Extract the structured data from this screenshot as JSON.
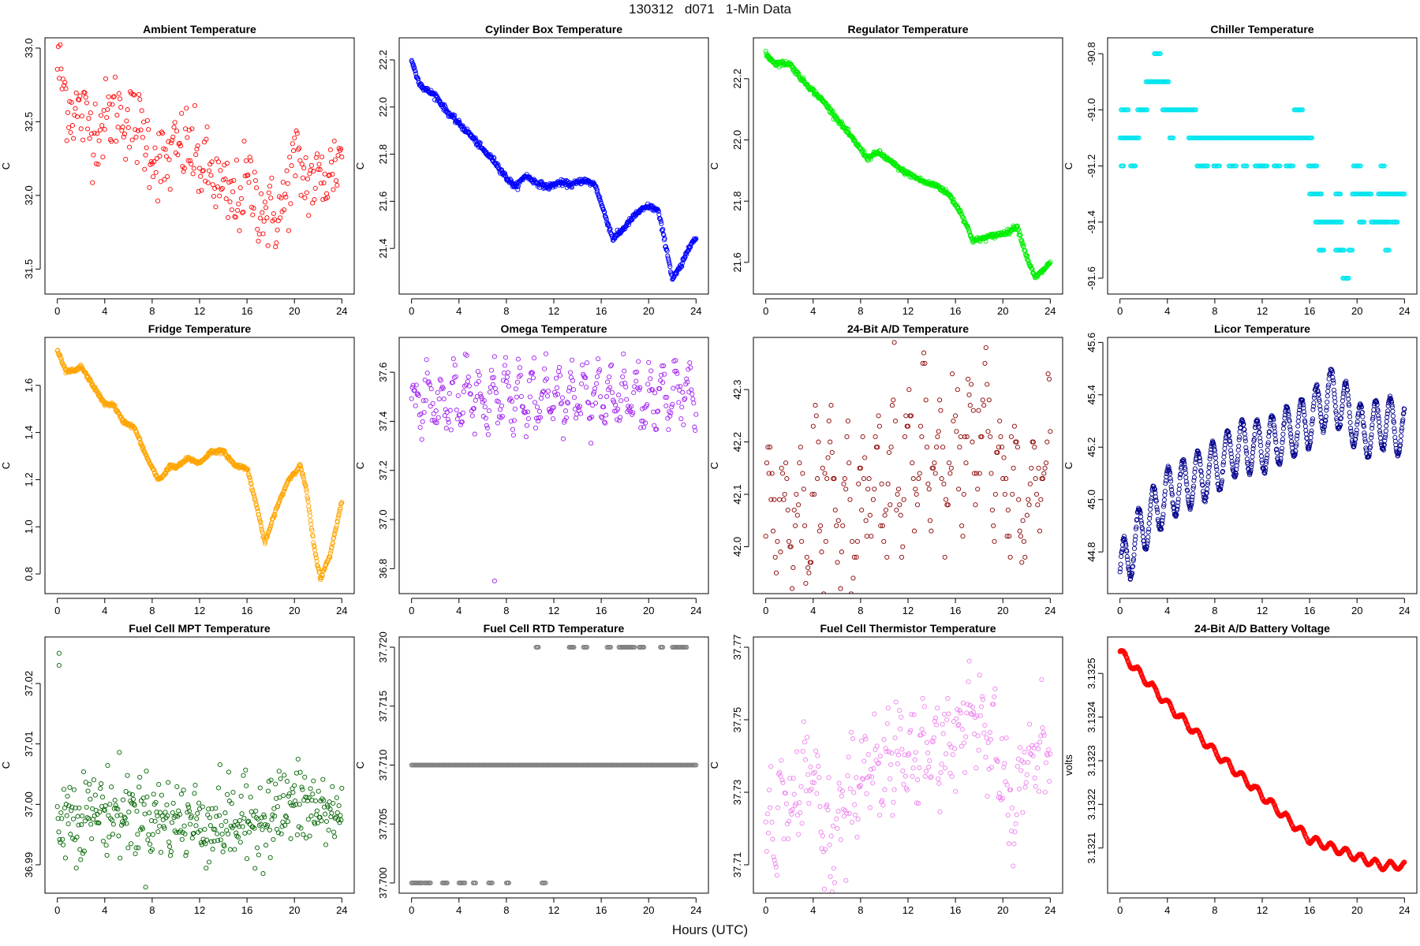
{
  "figure": {
    "title": "130312   d071   1-Min Data",
    "xlabel": "Hours (UTC)"
  },
  "chart_data": [
    {
      "type": "scatter",
      "title": "Ambient Temperature",
      "ylabel": "C",
      "color": "#ff0000",
      "xlim": [
        0,
        24
      ],
      "ylim": [
        31.4,
        33.0
      ],
      "xticks": [
        0,
        4,
        8,
        12,
        16,
        20,
        24
      ],
      "yticks": [
        "31.5",
        "32.0",
        "32.5",
        "33.0"
      ],
      "shape": "noisy",
      "noise": 0.14,
      "density": 1.0,
      "trend": [
        [
          0,
          32.9
        ],
        [
          1,
          32.6
        ],
        [
          2,
          32.55
        ],
        [
          3,
          32.45
        ],
        [
          4,
          32.5
        ],
        [
          5,
          32.6
        ],
        [
          6,
          32.5
        ],
        [
          7,
          32.45
        ],
        [
          8,
          32.3
        ],
        [
          9,
          32.2
        ],
        [
          10,
          32.3
        ],
        [
          11,
          32.35
        ],
        [
          12,
          32.2
        ],
        [
          13,
          32.15
        ],
        [
          14,
          32.0
        ],
        [
          15,
          31.95
        ],
        [
          16,
          32.1
        ],
        [
          17,
          31.95
        ],
        [
          18,
          31.85
        ],
        [
          19,
          31.9
        ],
        [
          20,
          32.25
        ],
        [
          21,
          32.1
        ],
        [
          22,
          32.1
        ],
        [
          23,
          32.15
        ],
        [
          24,
          32.3
        ]
      ]
    },
    {
      "type": "scatter",
      "title": "Cylinder Box Temperature",
      "ylabel": "C",
      "color": "#0000ff",
      "xlim": [
        0,
        24
      ],
      "ylim": [
        21.25,
        22.25
      ],
      "xticks": [
        0,
        4,
        8,
        12,
        16,
        20,
        24
      ],
      "yticks": [
        "21.4",
        "21.6",
        "21.8",
        "22.0",
        "22.2"
      ],
      "shape": "smooth",
      "noise": 0.006,
      "density": 2.0,
      "trend": [
        [
          0,
          22.2
        ],
        [
          0.5,
          22.12
        ],
        [
          1,
          22.08
        ],
        [
          2,
          22.05
        ],
        [
          3,
          21.98
        ],
        [
          4,
          21.93
        ],
        [
          5,
          21.88
        ],
        [
          6,
          21.82
        ],
        [
          7,
          21.77
        ],
        [
          8,
          21.7
        ],
        [
          8.8,
          21.66
        ],
        [
          9.6,
          21.71
        ],
        [
          10.5,
          21.68
        ],
        [
          11.5,
          21.66
        ],
        [
          12.5,
          21.68
        ],
        [
          13.5,
          21.67
        ],
        [
          14.5,
          21.69
        ],
        [
          15.5,
          21.67
        ],
        [
          16.2,
          21.56
        ],
        [
          17,
          21.44
        ],
        [
          17.8,
          21.48
        ],
        [
          19,
          21.55
        ],
        [
          20,
          21.58
        ],
        [
          20.8,
          21.56
        ],
        [
          21.5,
          21.4
        ],
        [
          22,
          21.27
        ],
        [
          22.8,
          21.33
        ],
        [
          23.5,
          21.42
        ],
        [
          24,
          21.44
        ]
      ]
    },
    {
      "type": "scatter",
      "title": "Regulator Temperature",
      "ylabel": "C",
      "color": "#00ee00",
      "xlim": [
        0,
        24
      ],
      "ylim": [
        21.53,
        22.3
      ],
      "xticks": [
        0,
        4,
        8,
        12,
        16,
        20,
        24
      ],
      "yticks": [
        "21.6",
        "21.8",
        "22.0",
        "22.2"
      ],
      "shape": "smooth",
      "noise": 0.004,
      "density": 2.0,
      "trend": [
        [
          0,
          22.28
        ],
        [
          0.8,
          22.25
        ],
        [
          2,
          22.25
        ],
        [
          3,
          22.2
        ],
        [
          4,
          22.16
        ],
        [
          5,
          22.12
        ],
        [
          6,
          22.07
        ],
        [
          7,
          22.02
        ],
        [
          8,
          21.97
        ],
        [
          8.6,
          21.94
        ],
        [
          9.5,
          21.96
        ],
        [
          10.5,
          21.93
        ],
        [
          11.5,
          21.9
        ],
        [
          12.5,
          21.88
        ],
        [
          13.5,
          21.86
        ],
        [
          14.5,
          21.85
        ],
        [
          15.5,
          21.82
        ],
        [
          16.5,
          21.76
        ],
        [
          17.5,
          21.67
        ],
        [
          18.5,
          21.68
        ],
        [
          19.5,
          21.69
        ],
        [
          20.5,
          21.7
        ],
        [
          21.2,
          21.72
        ],
        [
          22,
          21.62
        ],
        [
          22.7,
          21.55
        ],
        [
          23.3,
          21.57
        ],
        [
          24,
          21.6
        ]
      ]
    },
    {
      "type": "scatter",
      "title": "Chiller Temperature",
      "ylabel": "C",
      "color": "#00e5ee",
      "xlim": [
        0,
        24
      ],
      "ylim": [
        -91.62,
        -90.78
      ],
      "xticks": [
        0,
        4,
        8,
        12,
        16,
        20,
        24
      ],
      "yticks": [
        "-91.6",
        "-91.4",
        "-91.2",
        "-91.0",
        "-90.8"
      ],
      "shape": "discrete",
      "levels": [
        {
          "y": -90.8,
          "ranges": [
            [
              2.9,
              3.4
            ]
          ]
        },
        {
          "y": -90.9,
          "ranges": [
            [
              2.2,
              4.1
            ]
          ]
        },
        {
          "y": -91.0,
          "ranges": [
            [
              0.1,
              0.7
            ],
            [
              1.5,
              2.3
            ],
            [
              3.6,
              6.4
            ],
            [
              14.7,
              15.4
            ]
          ]
        },
        {
          "y": -91.1,
          "ranges": [
            [
              0,
              1.6
            ],
            [
              4.2,
              4.5
            ],
            [
              5.8,
              16.2
            ]
          ]
        },
        {
          "y": -91.2,
          "ranges": [
            [
              0.1,
              0.3
            ],
            [
              0.9,
              1.3
            ],
            [
              6.5,
              7.4
            ],
            [
              7.9,
              8.4
            ],
            [
              9.2,
              9.8
            ],
            [
              10.4,
              10.7
            ],
            [
              11.4,
              12.4
            ],
            [
              13.0,
              13.5
            ],
            [
              14.0,
              14.6
            ],
            [
              15.9,
              16.6
            ],
            [
              19.7,
              20.3
            ],
            [
              22.0,
              22.3
            ]
          ]
        },
        {
          "y": -91.3,
          "ranges": [
            [
              16.0,
              17.0
            ],
            [
              18.2,
              18.6
            ],
            [
              19.6,
              21.2
            ],
            [
              21.8,
              24
            ]
          ]
        },
        {
          "y": -91.4,
          "ranges": [
            [
              16.5,
              18.7
            ],
            [
              20.2,
              20.6
            ],
            [
              21.2,
              22.8
            ],
            [
              23.0,
              23.4
            ]
          ]
        },
        {
          "y": -91.5,
          "ranges": [
            [
              16.8,
              17.2
            ],
            [
              18.2,
              18.9
            ],
            [
              19.3,
              19.6
            ],
            [
              22.4,
              22.7
            ]
          ]
        },
        {
          "y": -91.6,
          "ranges": [
            [
              18.8,
              19.3
            ]
          ]
        }
      ]
    },
    {
      "type": "scatter",
      "title": "Fridge Temperature",
      "ylabel": "C",
      "color": "#ffa500",
      "xlim": [
        0,
        24
      ],
      "ylim": [
        0.76,
        1.76
      ],
      "xticks": [
        0,
        4,
        8,
        12,
        16,
        20,
        24
      ],
      "yticks": [
        "0.8",
        "1.0",
        "1.2",
        "1.4",
        "1.6"
      ],
      "shape": "smooth",
      "noise": 0.004,
      "density": 2.0,
      "trend": [
        [
          0,
          1.75
        ],
        [
          0.7,
          1.66
        ],
        [
          1.5,
          1.66
        ],
        [
          2,
          1.68
        ],
        [
          3,
          1.6
        ],
        [
          4,
          1.52
        ],
        [
          4.7,
          1.52
        ],
        [
          5.5,
          1.45
        ],
        [
          6.5,
          1.42
        ],
        [
          7.5,
          1.3
        ],
        [
          8.5,
          1.2
        ],
        [
          9,
          1.22
        ],
        [
          9.5,
          1.26
        ],
        [
          10,
          1.25
        ],
        [
          11,
          1.29
        ],
        [
          12,
          1.27
        ],
        [
          13,
          1.32
        ],
        [
          14,
          1.32
        ],
        [
          15,
          1.26
        ],
        [
          16,
          1.25
        ],
        [
          17,
          1.05
        ],
        [
          17.5,
          0.93
        ],
        [
          18.5,
          1.08
        ],
        [
          19.5,
          1.2
        ],
        [
          20.5,
          1.26
        ],
        [
          21,
          1.16
        ],
        [
          21.7,
          0.9
        ],
        [
          22.2,
          0.78
        ],
        [
          23,
          0.88
        ],
        [
          24,
          1.11
        ]
      ]
    },
    {
      "type": "scatter",
      "title": "Omega Temperature",
      "ylabel": "C",
      "color": "#a020f0",
      "xlim": [
        0,
        24
      ],
      "ylim": [
        36.74,
        37.7
      ],
      "xticks": [
        0,
        4,
        8,
        12,
        16,
        20,
        24
      ],
      "yticks": [
        "36.8",
        "37.0",
        "37.2",
        "37.4",
        "37.6"
      ],
      "shape": "oscillate",
      "amp": 0.1,
      "period": 1.1,
      "noise": 0.04,
      "density": 1.2,
      "trend": [
        [
          0,
          37.48
        ],
        [
          4,
          37.5
        ],
        [
          8,
          37.5
        ],
        [
          12,
          37.5
        ],
        [
          16,
          37.5
        ],
        [
          20,
          37.49
        ],
        [
          24,
          37.52
        ]
      ],
      "outliers": [
        [
          7,
          36.75
        ]
      ]
    },
    {
      "type": "scatter",
      "title": "24-Bit A/D Temperature",
      "ylabel": "C",
      "color": "#8b0000",
      "xlim": [
        0,
        24
      ],
      "ylim": [
        41.93,
        42.38
      ],
      "xticks": [
        0,
        4,
        8,
        12,
        16,
        20,
        24
      ],
      "yticks": [
        "42.0",
        "42.1",
        "42.2",
        "42.3"
      ],
      "shape": "quantized",
      "step": 0.01,
      "noise": 0.06,
      "amp": 0.1,
      "period": 1.3,
      "density": 0.9,
      "trend": [
        [
          0,
          42.05
        ],
        [
          4,
          42.08
        ],
        [
          8,
          42.08
        ],
        [
          12,
          42.15
        ],
        [
          16,
          42.18
        ],
        [
          19,
          42.2
        ],
        [
          20,
          42.12
        ],
        [
          22,
          42.1
        ],
        [
          24,
          42.15
        ]
      ]
    },
    {
      "type": "scatter",
      "title": "Licor Temperature",
      "ylabel": "C",
      "color": "#00008b",
      "xlim": [
        0,
        24
      ],
      "ylim": [
        44.68,
        45.58
      ],
      "xticks": [
        0,
        4,
        8,
        12,
        16,
        20,
        24
      ],
      "yticks": [
        "44.8",
        "45.0",
        "45.2",
        "45.4",
        "45.6"
      ],
      "shape": "oscillate",
      "amp": 0.1,
      "period": 1.25,
      "noise": 0.004,
      "density": 2.5,
      "trend": [
        [
          0,
          44.72
        ],
        [
          2,
          44.9
        ],
        [
          4,
          45.02
        ],
        [
          6,
          45.07
        ],
        [
          8,
          45.12
        ],
        [
          10,
          45.2
        ],
        [
          12,
          45.2
        ],
        [
          14,
          45.25
        ],
        [
          16,
          45.3
        ],
        [
          17.7,
          45.4
        ],
        [
          19,
          45.35
        ],
        [
          20.5,
          45.25
        ],
        [
          22.5,
          45.3
        ],
        [
          24,
          45.25
        ]
      ]
    },
    {
      "type": "scatter",
      "title": "Fuel Cell MPT Temperature",
      "ylabel": "C",
      "color": "#006400",
      "xlim": [
        0,
        24
      ],
      "ylim": [
        36.987,
        37.026
      ],
      "xticks": [
        0,
        4,
        8,
        12,
        16,
        20,
        24
      ],
      "yticks": [
        "36.99",
        "37.00",
        "37.01",
        "37.02"
      ],
      "shape": "noisy",
      "noise": 0.0035,
      "density": 1.3,
      "trend": [
        [
          0,
          36.998
        ],
        [
          4,
          36.999
        ],
        [
          8,
          36.998
        ],
        [
          12,
          36.997
        ],
        [
          16,
          36.997
        ],
        [
          20,
          37.0
        ],
        [
          24,
          36.998
        ]
      ],
      "outliers": [
        [
          0.15,
          37.025
        ],
        [
          0.15,
          37.023
        ]
      ]
    },
    {
      "type": "scatter",
      "title": "Fuel Cell RTD Temperature",
      "ylabel": "C",
      "color": "#808080",
      "xlim": [
        0,
        24
      ],
      "ylim": [
        37.7,
        37.72
      ],
      "xticks": [
        0,
        4,
        8,
        12,
        16,
        20,
        24
      ],
      "yticks": [
        "37.700",
        "37.705",
        "37.710",
        "37.715",
        "37.720"
      ],
      "shape": "discrete",
      "levels": [
        {
          "y": 37.71,
          "ranges": [
            [
              0,
              24
            ]
          ]
        },
        {
          "y": 37.7,
          "ranges": [
            [
              0,
              0.9
            ],
            [
              1.1,
              1.6
            ],
            [
              2.6,
              3.0
            ],
            [
              4.0,
              4.5
            ],
            [
              5.2,
              5.4
            ],
            [
              6.5,
              6.8
            ],
            [
              8.0,
              8.2
            ],
            [
              11.0,
              11.3
            ]
          ]
        },
        {
          "y": 37.72,
          "ranges": [
            [
              10.5,
              10.7
            ],
            [
              13.3,
              13.7
            ],
            [
              14.5,
              14.8
            ],
            [
              16.5,
              16.8
            ],
            [
              17.5,
              18.8
            ],
            [
              19.2,
              19.6
            ],
            [
              21.0,
              21.2
            ],
            [
              22.0,
              23.2
            ]
          ]
        }
      ]
    },
    {
      "type": "scatter",
      "title": "Fuel Cell Thermistor Temperature",
      "ylabel": "C",
      "color": "#ee82ee",
      "xlim": [
        0,
        24
      ],
      "ylim": [
        37.705,
        37.77
      ],
      "xticks": [
        0,
        4,
        8,
        12,
        16,
        20,
        24
      ],
      "yticks": [
        "37.71",
        "37.73",
        "37.75",
        "37.77"
      ],
      "shape": "oscillate",
      "amp": 0.007,
      "period": 1.0,
      "noise": 0.006,
      "density": 1.1,
      "trend": [
        [
          0,
          37.72
        ],
        [
          2,
          37.728
        ],
        [
          4,
          37.735
        ],
        [
          5.5,
          37.715
        ],
        [
          7,
          37.728
        ],
        [
          9,
          37.738
        ],
        [
          12,
          37.74
        ],
        [
          14,
          37.742
        ],
        [
          16,
          37.745
        ],
        [
          17.5,
          37.752
        ],
        [
          19,
          37.745
        ],
        [
          20,
          37.732
        ],
        [
          21,
          37.722
        ],
        [
          22,
          37.74
        ],
        [
          23.5,
          37.742
        ],
        [
          24,
          37.74
        ]
      ]
    },
    {
      "type": "scatter",
      "title": "24-Bit A/D Battery Voltage",
      "ylabel": "volts",
      "color": "#ff0000",
      "xlim": [
        0,
        24
      ],
      "ylim": [
        3.13202,
        3.13256
      ],
      "xticks": [
        0,
        4,
        8,
        12,
        16,
        20,
        24
      ],
      "yticks": [
        "3.1321",
        "3.1322",
        "3.1323",
        "3.1324",
        "3.1325"
      ],
      "shape": "oscillate",
      "amp": 9e-06,
      "period": 1.25,
      "noise": 8e-07,
      "density": 2.5,
      "trend": [
        [
          0,
          3.13255
        ],
        [
          4,
          3.13243
        ],
        [
          8,
          3.13232
        ],
        [
          12,
          3.13222
        ],
        [
          16,
          3.13212
        ],
        [
          20,
          3.13208
        ],
        [
          22,
          3.13206
        ],
        [
          24,
          3.13206
        ]
      ]
    }
  ]
}
